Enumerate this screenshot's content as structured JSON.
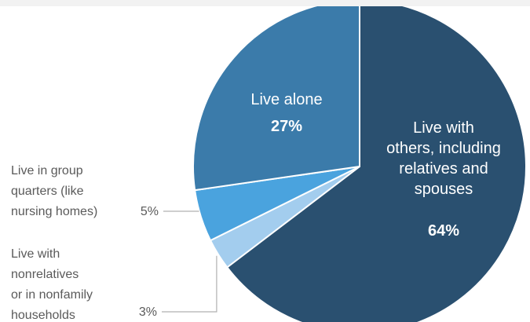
{
  "chart_data": {
    "type": "pie",
    "start_angle_deg": 0,
    "direction": "clockwise",
    "slices": [
      {
        "label": "Live with others, including relatives and spouses",
        "label_lines": [
          "Live with",
          "others, including",
          "relatives and",
          "spouses"
        ],
        "pct_text": "64%",
        "value": 64,
        "color": "#2a5070",
        "label_style": "inside"
      },
      {
        "label": "Live with nonrelatives or in nonfamily households",
        "label_lines": [
          "Live with",
          "nonrelatives",
          "or in nonfamily",
          "households"
        ],
        "pct_text": "3%",
        "value": 3,
        "color": "#a3cdee",
        "label_style": "callout"
      },
      {
        "label": "Live in group quarters (like nursing homes)",
        "label_lines": [
          "Live in group",
          "quarters (like",
          "nursing homes)"
        ],
        "pct_text": "5%",
        "value": 5,
        "color": "#4aa3de",
        "label_style": "callout"
      },
      {
        "label": "Live alone",
        "label_lines": [
          "Live alone"
        ],
        "pct_text": "27%",
        "value": 27,
        "color": "#3b7baa",
        "label_style": "inside"
      }
    ]
  }
}
